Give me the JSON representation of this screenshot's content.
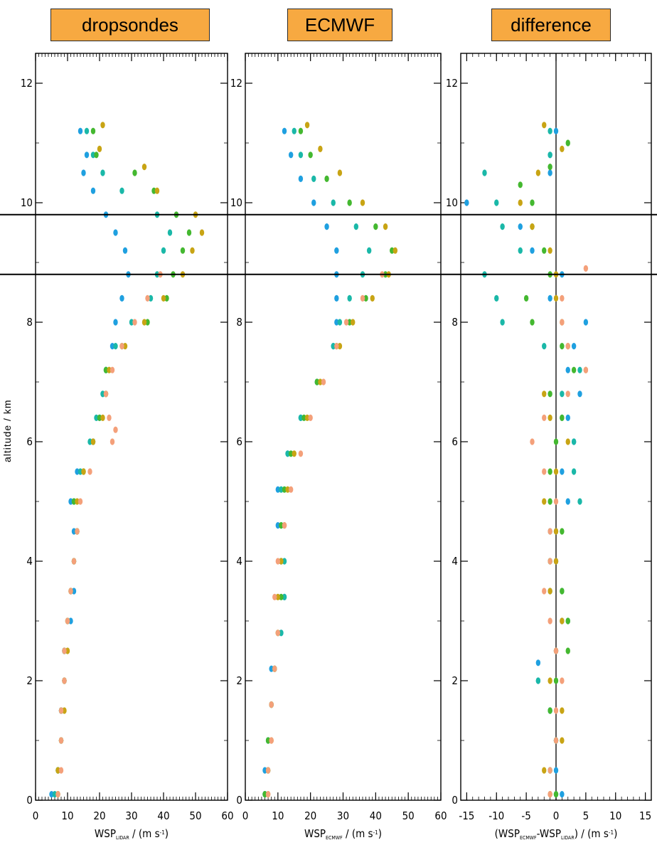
{
  "panels": [
    {
      "label": "dropsondes",
      "xlabel": "WSP",
      "xlabel_sub": "LIDAR",
      "xlabel_unit": " / (m s",
      "xlabel_unit_sup": "-1",
      "xlabel_end": ")"
    },
    {
      "label": "ECMWF",
      "xlabel": "WSP",
      "xlabel_sub": "ECMWF",
      "xlabel_unit": " / (m s",
      "xlabel_unit_sup": "-1",
      "xlabel_end": ")"
    },
    {
      "label": "difference",
      "xlabel": "(WSP",
      "xlabel_sub": "ECMWF",
      "xlabel_mid": "-WSP",
      "xlabel_sub2": "LIDAR",
      "xlabel_unit": ") / (m s",
      "xlabel_unit_sup": "-1",
      "xlabel_end": ")"
    }
  ],
  "ylabel": "altitude / km",
  "colors": {
    "blue": "#1fa0e0",
    "teal": "#1ab8a8",
    "green": "#44b830",
    "olive": "#c8a414",
    "salmon": "#f4a07a",
    "box": "#f7a941"
  },
  "chart_data": [
    {
      "type": "scatter",
      "title": "dropsondes",
      "xlabel": "WSP_LIDAR / (m s-1)",
      "ylabel": "altitude / km",
      "xlim": [
        0,
        60
      ],
      "ylim": [
        0,
        12.5
      ],
      "xticks": [
        0,
        10,
        20,
        30,
        40,
        50,
        60
      ],
      "yticks": [
        0,
        2,
        4,
        6,
        8,
        10,
        12
      ],
      "reference_lines_y": [
        9.8,
        8.8
      ],
      "series": [
        {
          "color": "blue",
          "y": [
            11.2,
            10.8,
            10.5,
            10.2,
            9.8,
            9.5,
            9.2,
            8.8,
            8.4,
            8.0,
            7.6,
            7.2,
            6.8,
            6.4,
            6.0,
            5.5,
            5.0,
            4.5,
            4.0,
            3.5,
            3.0,
            2.5,
            2.0,
            1.5,
            1.0,
            0.5,
            0.1
          ],
          "x": [
            14,
            16,
            15,
            18,
            22,
            25,
            28,
            29,
            27,
            25,
            24,
            22,
            21,
            20,
            18,
            13,
            11,
            12,
            12,
            12,
            11,
            9,
            9,
            8,
            8,
            7,
            5
          ]
        },
        {
          "color": "teal",
          "y": [
            11.2,
            10.8,
            10.5,
            10.2,
            9.8,
            9.5,
            9.2,
            8.8,
            8.4,
            8.0,
            7.6,
            7.2,
            6.8,
            6.4,
            6.0,
            5.5,
            5.0,
            4.5,
            4.0,
            3.5,
            3.0,
            2.5,
            2.0,
            1.5,
            1.0,
            0.5,
            0.1
          ],
          "x": [
            16,
            18,
            21,
            27,
            38,
            42,
            40,
            38,
            36,
            30,
            25,
            22,
            21,
            19,
            17,
            14,
            12,
            13,
            12,
            11,
            10,
            9,
            9,
            8,
            8,
            7,
            6
          ]
        },
        {
          "color": "green",
          "y": [
            11.2,
            10.8,
            10.5,
            10.2,
            9.8,
            9.5,
            9.2,
            8.8,
            8.4,
            8.0,
            7.6,
            7.2,
            6.8,
            6.4,
            6.0,
            5.5,
            5.0,
            4.5,
            4.0,
            3.5,
            3.0,
            2.5,
            2.0,
            1.5,
            1.0,
            0.5,
            0.1
          ],
          "x": [
            18,
            19,
            31,
            37,
            44,
            48,
            46,
            43,
            41,
            35,
            27,
            22,
            22,
            20,
            18,
            15,
            12,
            13,
            12,
            11,
            10,
            9,
            9,
            8,
            8,
            7,
            7
          ]
        },
        {
          "color": "olive",
          "y": [
            11.3,
            10.9,
            10.6,
            10.2,
            9.8,
            9.5,
            9.2,
            8.8,
            8.4,
            8.0,
            7.6,
            7.2,
            6.8,
            6.4,
            6.0,
            5.5,
            5.0,
            4.5,
            4.0,
            3.5,
            3.0,
            2.5,
            2.0,
            1.5,
            1.0,
            0.5,
            0.1
          ],
          "x": [
            21,
            20,
            34,
            38,
            50,
            52,
            49,
            46,
            40,
            34,
            28,
            23,
            22,
            21,
            18,
            15,
            13,
            13,
            12,
            11,
            10,
            10,
            9,
            9,
            8,
            7,
            7
          ]
        },
        {
          "color": "salmon",
          "y": [
            8.8,
            8.4,
            8.0,
            7.6,
            7.2,
            6.8,
            6.4,
            6.2,
            6.0,
            5.5,
            5.0,
            4.5,
            4.0,
            3.5,
            3.0,
            2.5,
            2.0,
            1.5,
            1.0,
            0.5,
            0.1
          ],
          "x": [
            39,
            35,
            31,
            27,
            24,
            22,
            23,
            25,
            24,
            17,
            14,
            13,
            12,
            11,
            10,
            9,
            9,
            8,
            8,
            8,
            7
          ]
        }
      ]
    },
    {
      "type": "scatter",
      "title": "ECMWF",
      "xlabel": "WSP_ECMWF / (m s-1)",
      "ylabel": "altitude / km",
      "xlim": [
        0,
        60
      ],
      "ylim": [
        0,
        12.5
      ],
      "xticks": [
        0,
        10,
        20,
        30,
        40,
        50,
        60
      ],
      "yticks": [
        0,
        2,
        4,
        6,
        8,
        10,
        12
      ],
      "reference_lines_y": [
        9.8,
        8.8
      ],
      "series": [
        {
          "color": "blue",
          "y": [
            11.2,
            10.8,
            10.4,
            10.0,
            9.6,
            9.2,
            8.8,
            8.4,
            8.0,
            7.6,
            7.0,
            6.4,
            5.8,
            5.2,
            4.6,
            4.0,
            3.4,
            2.8,
            2.2,
            1.6,
            1.0,
            0.5,
            0.1
          ],
          "x": [
            12,
            14,
            17,
            21,
            25,
            28,
            28,
            28,
            28,
            27,
            22,
            17,
            13,
            10,
            10,
            11,
            12,
            11,
            8,
            8,
            7,
            6,
            6
          ]
        },
        {
          "color": "teal",
          "y": [
            11.2,
            10.8,
            10.4,
            10.0,
            9.6,
            9.2,
            8.8,
            8.4,
            8.0,
            7.6,
            7.0,
            6.4,
            5.8,
            5.2,
            4.6,
            4.0,
            3.4,
            2.8,
            2.2,
            1.6,
            1.0,
            0.5,
            0.1
          ],
          "x": [
            15,
            17,
            21,
            27,
            34,
            38,
            36,
            32,
            29,
            27,
            22,
            17,
            13,
            11,
            11,
            12,
            12,
            11,
            9,
            8,
            7,
            7,
            6
          ]
        },
        {
          "color": "green",
          "y": [
            11.2,
            10.8,
            10.4,
            10.0,
            9.6,
            9.2,
            8.8,
            8.4,
            8.0,
            7.6,
            7.0,
            6.4,
            5.8,
            5.2,
            4.6,
            4.0,
            3.4,
            2.8,
            2.2,
            1.6,
            1.0,
            0.5,
            0.1
          ],
          "x": [
            17,
            20,
            25,
            32,
            40,
            45,
            43,
            37,
            32,
            28,
            22,
            18,
            14,
            12,
            11,
            11,
            11,
            10,
            9,
            8,
            7,
            7,
            6
          ]
        },
        {
          "color": "olive",
          "y": [
            11.3,
            10.9,
            10.5,
            10.0,
            9.6,
            9.2,
            8.8,
            8.4,
            8.0,
            7.6,
            7.0,
            6.4,
            5.8,
            5.2,
            4.6,
            4.0,
            3.4,
            2.8,
            2.2,
            1.6,
            1.0,
            0.5,
            0.1
          ],
          "x": [
            19,
            23,
            29,
            36,
            43,
            46,
            44,
            39,
            33,
            29,
            23,
            19,
            15,
            13,
            12,
            11,
            10,
            10,
            9,
            8,
            8,
            7,
            7
          ]
        },
        {
          "color": "salmon",
          "y": [
            8.8,
            8.4,
            8.0,
            7.6,
            7.0,
            6.4,
            5.8,
            5.2,
            4.6,
            4.0,
            3.4,
            2.8,
            2.2,
            1.6,
            1.0,
            0.5,
            0.1
          ],
          "x": [
            42,
            36,
            31,
            28,
            24,
            20,
            17,
            14,
            12,
            10,
            9,
            10,
            9,
            8,
            8,
            7,
            7
          ]
        }
      ]
    },
    {
      "type": "scatter",
      "title": "difference",
      "xlabel": "(WSP_ECMWF-WSP_LIDAR) / (m s-1)",
      "ylabel": "altitude / km",
      "xlim": [
        -16,
        16
      ],
      "ylim": [
        0,
        12.5
      ],
      "xticks": [
        -15,
        -10,
        -5,
        0,
        5,
        10,
        15
      ],
      "yticks": [
        0,
        2,
        4,
        6,
        8,
        10,
        12
      ],
      "reference_lines_y": [
        9.8,
        8.8
      ],
      "reference_lines_x": [
        0
      ],
      "series": [
        {
          "color": "blue",
          "y": [
            11.2,
            10.8,
            10.5,
            10.0,
            9.6,
            9.2,
            8.8,
            8.4,
            8.0,
            7.6,
            7.2,
            6.8,
            6.4,
            6.0,
            5.5,
            5.0,
            4.5,
            4.0,
            3.5,
            3.0,
            2.5,
            2.3,
            2.0,
            1.5,
            1.0,
            0.5,
            0.1
          ],
          "x": [
            0,
            -1,
            -1,
            -15,
            -6,
            -4,
            1,
            -1,
            5,
            3,
            2,
            4,
            2,
            3,
            1,
            2,
            0,
            0,
            -1,
            1,
            0,
            -3,
            -3,
            -1,
            0,
            0,
            1
          ]
        },
        {
          "color": "teal",
          "y": [
            11.2,
            10.8,
            10.5,
            10.0,
            9.6,
            9.2,
            8.8,
            8.4,
            8.0,
            7.6,
            7.2,
            6.8,
            6.4,
            6.0,
            5.5,
            5.0,
            4.5,
            4.0,
            3.5,
            3.0,
            2.5,
            2.0,
            1.5,
            1.0,
            0.5,
            0.1
          ],
          "x": [
            -1,
            -1,
            -12,
            -10,
            -9,
            -6,
            -12,
            -10,
            -9,
            -2,
            4,
            1,
            1,
            3,
            3,
            4,
            -1,
            -1,
            1,
            2,
            0,
            -3,
            -1,
            0,
            -1,
            0
          ]
        },
        {
          "color": "green",
          "y": [
            11.0,
            10.6,
            10.3,
            10.0,
            9.6,
            9.2,
            8.8,
            8.4,
            8.0,
            7.6,
            7.2,
            6.8,
            6.4,
            6.0,
            5.5,
            5.0,
            4.5,
            4.0,
            3.5,
            3.0,
            2.5,
            2.0,
            1.5,
            1.0,
            0.5,
            0.1
          ],
          "x": [
            2,
            -1,
            -6,
            -4,
            -4,
            -2,
            -1,
            -5,
            -4,
            1,
            3,
            -1,
            1,
            0,
            -1,
            -1,
            1,
            -1,
            1,
            2,
            2,
            0,
            -1,
            0,
            -1,
            0
          ]
        },
        {
          "color": "olive",
          "y": [
            11.3,
            10.9,
            10.5,
            10.0,
            9.6,
            9.2,
            8.8,
            8.4,
            8.0,
            7.6,
            7.2,
            6.8,
            6.4,
            6.0,
            5.5,
            5.0,
            4.5,
            4.0,
            3.5,
            3.0,
            2.5,
            2.0,
            1.5,
            1.0,
            0.5,
            0.1
          ],
          "x": [
            -2,
            1,
            -3,
            -6,
            -4,
            -1,
            0,
            0,
            1,
            2,
            5,
            -2,
            -1,
            2,
            0,
            -2,
            0,
            0,
            -1,
            1,
            0,
            -1,
            1,
            1,
            -2,
            -1
          ]
        },
        {
          "color": "salmon",
          "y": [
            8.9,
            8.4,
            8.0,
            7.6,
            7.2,
            6.8,
            6.4,
            6.0,
            5.5,
            5.0,
            4.5,
            4.0,
            3.5,
            3.0,
            2.5,
            2.0,
            1.5,
            1.0,
            0.5,
            0.1
          ],
          "x": [
            5,
            1,
            1,
            2,
            5,
            2,
            -2,
            -4,
            -2,
            0,
            -1,
            -1,
            -2,
            -1,
            0,
            1,
            0,
            0,
            -1,
            -1
          ]
        }
      ]
    }
  ]
}
